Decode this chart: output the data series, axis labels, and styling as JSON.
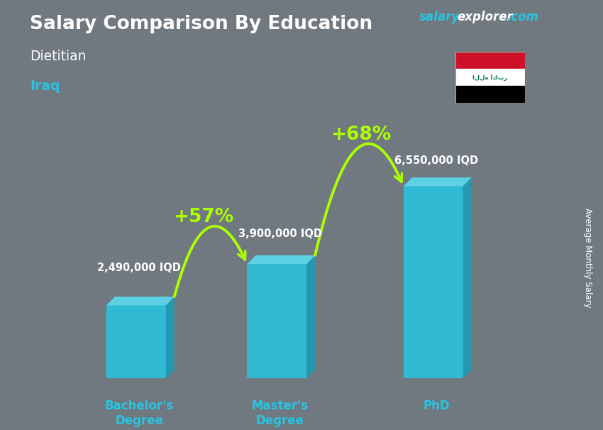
{
  "title": "Salary Comparison By Education",
  "subtitle": "Dietitian",
  "country": "Iraq",
  "categories": [
    "Bachelor's\nDegree",
    "Master's\nDegree",
    "PhD"
  ],
  "values": [
    2490000,
    3900000,
    6550000
  ],
  "value_labels": [
    "2,490,000 IQD",
    "3,900,000 IQD",
    "6,550,000 IQD"
  ],
  "bar_color": "#29c4e0",
  "bar_color_side": "#1a9db8",
  "bar_color_top": "#5dd8ec",
  "background_color": "#707880",
  "title_color": "#ffffff",
  "subtitle_color": "#ffffff",
  "country_color": "#29c4e0",
  "label_color": "#ffffff",
  "brand_salary_color": "#29c4e0",
  "brand_explorer_color": "#ffffff",
  "brand_com_color": "#29c4e0",
  "arrow_color": "#aaff00",
  "pct_labels": [
    "+57%",
    "+68%"
  ],
  "pct_color": "#aaff00",
  "axis_label": "Average Monthly Salary",
  "ymax": 8500000,
  "cat_label_color": "#29c4e0"
}
